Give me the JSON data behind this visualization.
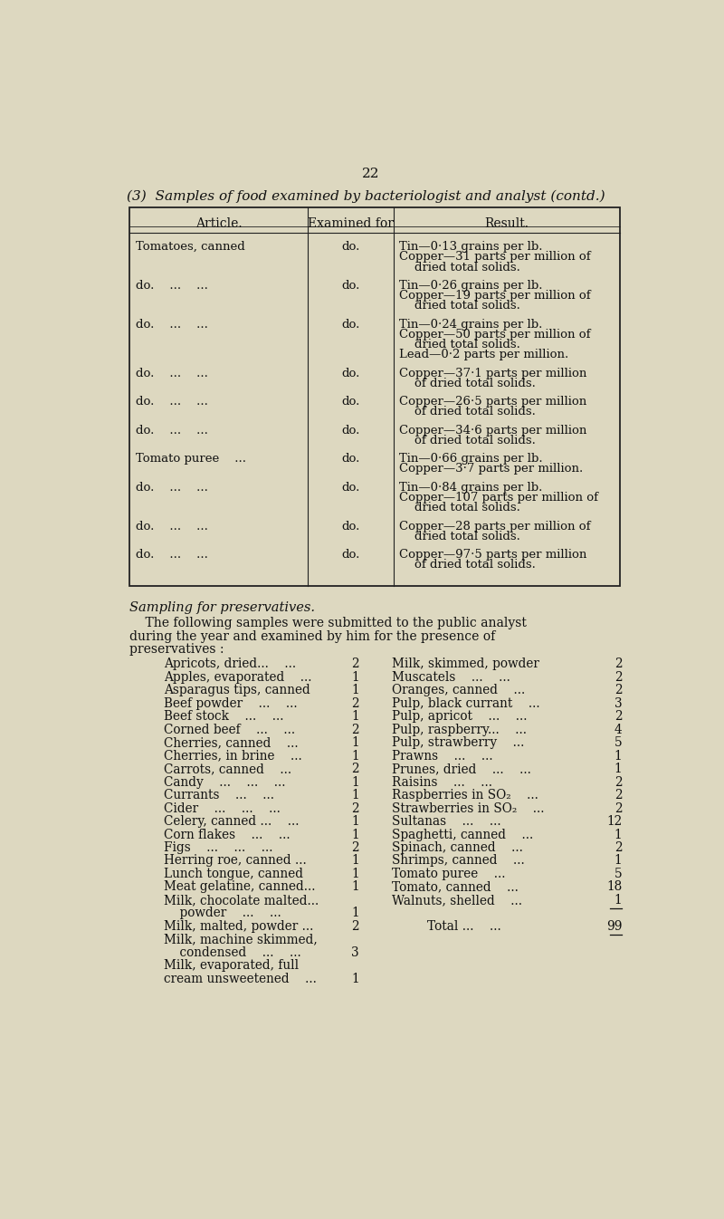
{
  "bg_color": "#ddd8c0",
  "page_number": "22",
  "title": "(3)  Samples of food examined by bacteriologist and analyst (contd.)",
  "table_header": [
    "Article.",
    "Examined for",
    "Result."
  ],
  "table_rows": [
    {
      "article": "Tomatoes, canned",
      "examined": "do.",
      "result": [
        "Tin—0·13 grains per lb.",
        "Copper—31 parts per million of",
        "    dried total solids."
      ]
    },
    {
      "article": "do.    ...    ...",
      "examined": "do.",
      "result": [
        "Tin—0·26 grains per lb.",
        "Copper—19 parts per million of",
        "    dried total solids."
      ]
    },
    {
      "article": "do.    ...    ...",
      "examined": "do.",
      "result": [
        "Tin—0·24 grains per lb.",
        "Copper—50 parts per million of",
        "    dried total solids.",
        "Lead—0·2 parts per million."
      ]
    },
    {
      "article": "do.    ...    ...",
      "examined": "do.",
      "result": [
        "Copper—37·1 parts per million",
        "    of dried total solids."
      ]
    },
    {
      "article": "do.    ...    ...",
      "examined": "do.",
      "result": [
        "Copper—26·5 parts per million",
        "    of dried total solids."
      ]
    },
    {
      "article": "do.    ...    ...",
      "examined": "do.",
      "result": [
        "Copper—34·6 parts per million",
        "    of dried total solids."
      ]
    },
    {
      "article": "Tomato puree    ...",
      "examined": "do.",
      "result": [
        "Tin—0·66 grains per lb.",
        "Copper—3·7 parts per million."
      ]
    },
    {
      "article": "do.    ...    ...",
      "examined": "do.",
      "result": [
        "Tin—0·84 grains per lb.",
        "Copper—107 parts per million of",
        "    dried total solids."
      ]
    },
    {
      "article": "do.    ...    ...",
      "examined": "do.",
      "result": [
        "Copper—28 parts per million of",
        "    dried total solids."
      ]
    },
    {
      "article": "do.    ...    ...",
      "examined": "do.",
      "result": [
        "Copper—97·5 parts per million",
        "    of dried total solids."
      ]
    }
  ],
  "sampling_heading": "Sampling for preservatives.",
  "sampling_intro_indent": "    The following samples were submitted to the public analyst\nduring the year and examined by him for the presence of\npreservatives :",
  "left_col": [
    {
      "label": "Apricots, dried...    ...",
      "num": "2"
    },
    {
      "label": "Apples, evaporated    ...",
      "num": "1"
    },
    {
      "label": "Asparagus tips, canned",
      "num": "1"
    },
    {
      "label": "Beef powder    ...    ...",
      "num": "2"
    },
    {
      "label": "Beef stock    ...    ...",
      "num": "1"
    },
    {
      "label": "Corned beef    ...    ...",
      "num": "2"
    },
    {
      "label": "Cherries, canned    ...",
      "num": "1"
    },
    {
      "label": "Cherries, in brine    ...",
      "num": "1"
    },
    {
      "label": "Carrots, canned    ...",
      "num": "2"
    },
    {
      "label": "Candy    ...    ...    ...",
      "num": "1"
    },
    {
      "label": "Currants    ...    ...",
      "num": "1"
    },
    {
      "label": "Cider    ...    ...    ...",
      "num": "2"
    },
    {
      "label": "Celery, canned ...    ...",
      "num": "1"
    },
    {
      "label": "Corn flakes    ...    ...",
      "num": "1"
    },
    {
      "label": "Figs    ...    ...    ...",
      "num": "2"
    },
    {
      "label": "Herring roe, canned ...",
      "num": "1"
    },
    {
      "label": "Lunch tongue, canned",
      "num": "1"
    },
    {
      "label": "Meat gelatine, canned...",
      "num": "1"
    },
    {
      "label": "Milk, chocolate malted...",
      "num": ""
    },
    {
      "label": "    powder    ...    ...",
      "num": "1"
    },
    {
      "label": "Milk, malted, powder ...",
      "num": "2"
    },
    {
      "label": "Milk, machine skimmed,",
      "num": ""
    },
    {
      "label": "    condensed    ...    ...",
      "num": "3"
    },
    {
      "label": "Milk, evaporated, full",
      "num": ""
    },
    {
      "label": "cream unsweetened    ...",
      "num": "1"
    }
  ],
  "right_col": [
    {
      "label": "Milk, skimmed, powder",
      "num": "2"
    },
    {
      "label": "Muscatels    ...    ...",
      "num": "2"
    },
    {
      "label": "Oranges, canned    ...",
      "num": "2"
    },
    {
      "label": "Pulp, black currant    ...",
      "num": "3"
    },
    {
      "label": "Pulp, apricot    ...    ...",
      "num": "2"
    },
    {
      "label": "Pulp, raspberry...    ...",
      "num": "4"
    },
    {
      "label": "Pulp, strawberry    ...",
      "num": "5"
    },
    {
      "label": "Prawns    ...    ...",
      "num": "1"
    },
    {
      "label": "Prunes, dried    ...    ...",
      "num": "1"
    },
    {
      "label": "Raisins    ...    ...",
      "num": "2"
    },
    {
      "label": "Raspberries in SO₂    ...",
      "num": "2"
    },
    {
      "label": "Strawberries in SO₂    ...",
      "num": "2"
    },
    {
      "label": "Sultanas    ...    ...",
      "num": "12"
    },
    {
      "label": "Spaghetti, canned    ...",
      "num": "1"
    },
    {
      "label": "Spinach, canned    ...",
      "num": "2"
    },
    {
      "label": "Shrimps, canned    ...",
      "num": "1"
    },
    {
      "label": "Tomato puree    ...",
      "num": "5"
    },
    {
      "label": "Tomato, canned    ...",
      "num": "18"
    },
    {
      "label": "Walnuts, shelled    ...",
      "num": "1"
    }
  ],
  "total_label": "Total ...    ...",
  "total_num": "99",
  "text_color": "#111111",
  "table_line_color": "#222222"
}
